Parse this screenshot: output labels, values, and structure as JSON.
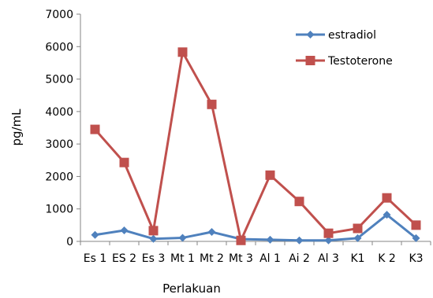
{
  "chart_data": {
    "type": "line",
    "categories": [
      "Es 1",
      "ES 2",
      "Es 3",
      "Mt 1",
      "Mt 2",
      "Mt 3",
      "Al 1",
      "Ai 2",
      "Al 3",
      "K1",
      "K 2",
      "K3"
    ],
    "series": [
      {
        "name": "estradiol",
        "color": "#4F81BD",
        "marker": "diamond",
        "values": [
          200,
          340,
          80,
          110,
          290,
          70,
          50,
          30,
          30,
          100,
          820,
          100
        ]
      },
      {
        "name": "Testoterone",
        "color": "#C0504D",
        "marker": "square",
        "values": [
          3450,
          2430,
          330,
          5830,
          4220,
          30,
          2040,
          1230,
          250,
          400,
          1340,
          500
        ]
      }
    ],
    "xlabel": "Perlakuan",
    "ylabel": "pg/mL",
    "ylim": [
      0,
      7000
    ],
    "yticks": [
      0,
      1000,
      2000,
      3000,
      4000,
      5000,
      6000,
      7000
    ],
    "grid": false,
    "legend": "top-right"
  }
}
